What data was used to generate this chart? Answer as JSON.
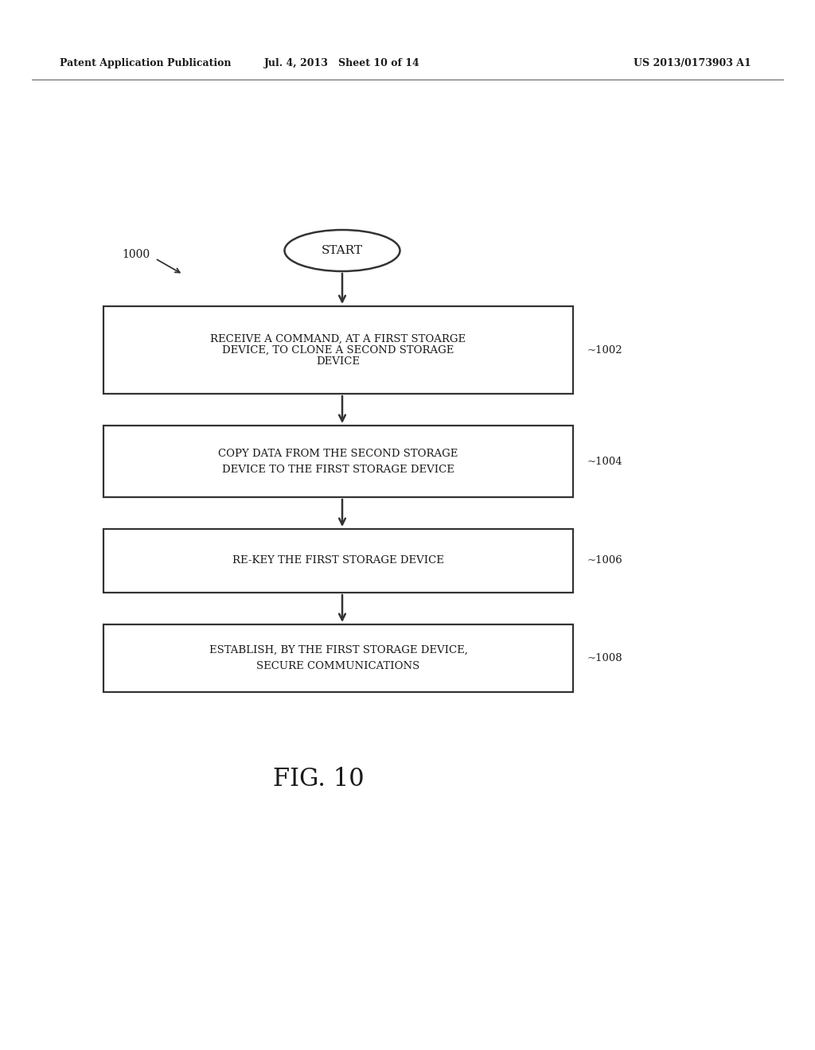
{
  "bg_color": "#ffffff",
  "text_color": "#1a1a1a",
  "header_left": "Patent Application Publication",
  "header_mid": "Jul. 4, 2013   Sheet 10 of 14",
  "header_right": "US 2013/0173903 A1",
  "fig_label": "FIG. 10",
  "diagram_label": "1000",
  "start_label": "START",
  "box1_text_l1": "RECEIVE A COMMAND, AT A FIRST STOARGE",
  "box1_text_l2": "DEVICE, TO CLONE A SECOND STORAGE",
  "box1_text_l3": "DEVICE",
  "box1_label": "~1002",
  "box2_text_l1": "COPY DATA FROM THE SECOND STORAGE",
  "box2_text_l2": "DEVICE TO THE FIRST STORAGE DEVICE",
  "box2_label": "~1004",
  "box3_text_l1": "RE-KEY THE FIRST STORAGE DEVICE",
  "box3_label": "~1006",
  "box4_text_l1": "ESTABLISH, BY THE FIRST STORAGE DEVICE,",
  "box4_text_l2": "SECURE COMMUNICATIONS",
  "box4_label": "~1008"
}
